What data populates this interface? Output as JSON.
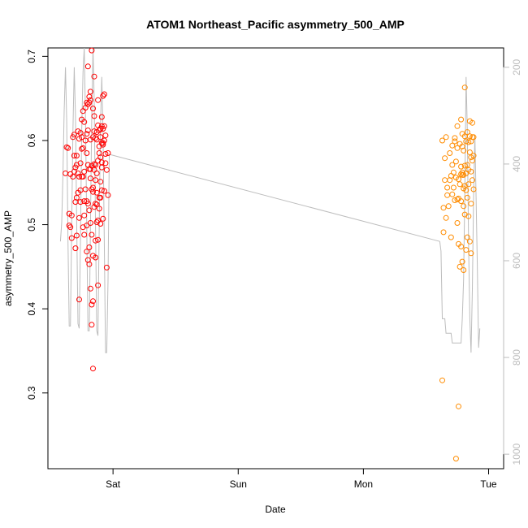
{
  "chart_data": {
    "type": "scatter",
    "title": "ATOM1 Northeast_Pacific asymmetry_500_AMP",
    "xlabel": "Date",
    "ylabel": "asymmetry_500_AMP",
    "x_axis": {
      "ticks": [
        {
          "label": "Sat",
          "t": 0.0
        },
        {
          "label": "Sun",
          "t": 1.0
        },
        {
          "label": "Mon",
          "t": 2.0
        },
        {
          "label": "Tue",
          "t": 3.0
        }
      ],
      "range_days": [
        -0.52,
        3.12
      ]
    },
    "y_axis": {
      "ylim": [
        0.21,
        0.71
      ],
      "ticks": [
        0.3,
        0.4,
        0.5,
        0.6,
        0.7
      ],
      "tick_labels": [
        "0.3",
        "0.4",
        "0.5",
        "0.6",
        "0.7"
      ]
    },
    "y2_axis": {
      "range": [
        1030,
        160
      ],
      "ticks": [
        200,
        400,
        600,
        800,
        1000
      ],
      "tick_labels": [
        "200",
        "400",
        "600",
        "800",
        "1000"
      ],
      "color": "#bdbdbd"
    },
    "series": [
      {
        "color": "#ff0000",
        "points": [
          [
            -0.38,
            0.561
          ],
          [
            -0.37,
            0.592
          ],
          [
            -0.36,
            0.591
          ],
          [
            -0.35,
            0.513
          ],
          [
            -0.35,
            0.499
          ],
          [
            -0.34,
            0.56
          ],
          [
            -0.34,
            0.497
          ],
          [
            -0.33,
            0.511
          ],
          [
            -0.33,
            0.484
          ],
          [
            -0.32,
            0.557
          ],
          [
            -0.32,
            0.604
          ],
          [
            -0.31,
            0.563
          ],
          [
            -0.31,
            0.607
          ],
          [
            -0.31,
            0.582
          ],
          [
            -0.3,
            0.568
          ],
          [
            -0.3,
            0.527
          ],
          [
            -0.3,
            0.472
          ],
          [
            -0.29,
            0.487
          ],
          [
            -0.29,
            0.571
          ],
          [
            -0.29,
            0.582
          ],
          [
            -0.28,
            0.561
          ],
          [
            -0.28,
            0.538
          ],
          [
            -0.28,
            0.611
          ],
          [
            -0.27,
            0.602
          ],
          [
            -0.27,
            0.557
          ],
          [
            -0.27,
            0.411
          ],
          [
            -0.26,
            0.573
          ],
          [
            -0.26,
            0.541
          ],
          [
            -0.26,
            0.527
          ],
          [
            -0.26,
            0.609
          ],
          [
            -0.25,
            0.625
          ],
          [
            -0.25,
            0.557
          ],
          [
            -0.25,
            0.604
          ],
          [
            -0.24,
            0.635
          ],
          [
            -0.24,
            0.591
          ],
          [
            -0.24,
            0.557
          ],
          [
            -0.23,
            0.622
          ],
          [
            -0.23,
            0.563
          ],
          [
            -0.23,
            0.511
          ],
          [
            -0.23,
            0.488
          ],
          [
            -0.22,
            0.639
          ],
          [
            -0.22,
            0.6
          ],
          [
            -0.22,
            0.542
          ],
          [
            -0.21,
            0.645
          ],
          [
            -0.21,
            0.608
          ],
          [
            -0.21,
            0.528
          ],
          [
            -0.21,
            0.499
          ],
          [
            -0.2,
            0.688
          ],
          [
            -0.2,
            0.612
          ],
          [
            -0.2,
            0.571
          ],
          [
            -0.2,
            0.525
          ],
          [
            -0.2,
            0.458
          ],
          [
            -0.19,
            0.645
          ],
          [
            -0.19,
            0.652
          ],
          [
            -0.19,
            0.566
          ],
          [
            -0.19,
            0.517
          ],
          [
            -0.19,
            0.453
          ],
          [
            -0.18,
            0.658
          ],
          [
            -0.18,
            0.648
          ],
          [
            -0.18,
            0.601
          ],
          [
            -0.18,
            0.555
          ],
          [
            -0.18,
            0.424
          ],
          [
            -0.17,
            0.707
          ],
          [
            -0.17,
            0.57
          ],
          [
            -0.17,
            0.542
          ],
          [
            -0.17,
            0.381
          ],
          [
            -0.17,
            0.405
          ],
          [
            -0.16,
            0.638
          ],
          [
            -0.16,
            0.604
          ],
          [
            -0.16,
            0.539
          ],
          [
            -0.16,
            0.329
          ],
          [
            -0.16,
            0.463
          ],
          [
            -0.16,
            0.409
          ],
          [
            -0.15,
            0.676
          ],
          [
            -0.15,
            0.629
          ],
          [
            -0.15,
            0.611
          ],
          [
            -0.15,
            0.565
          ],
          [
            -0.15,
            0.521
          ],
          [
            -0.14,
            0.603
          ],
          [
            -0.14,
            0.571
          ],
          [
            -0.14,
            0.553
          ],
          [
            -0.14,
            0.525
          ],
          [
            -0.14,
            0.481
          ],
          [
            -0.13,
            0.61
          ],
          [
            -0.13,
            0.601
          ],
          [
            -0.13,
            0.561
          ],
          [
            -0.13,
            0.524
          ],
          [
            -0.13,
            0.503
          ],
          [
            -0.12,
            0.648
          ],
          [
            -0.12,
            0.618
          ],
          [
            -0.12,
            0.576
          ],
          [
            -0.12,
            0.482
          ],
          [
            -0.12,
            0.428
          ],
          [
            -0.11,
            0.612
          ],
          [
            -0.11,
            0.593
          ],
          [
            -0.11,
            0.585
          ],
          [
            -0.11,
            0.532
          ],
          [
            -0.1,
            0.604
          ],
          [
            -0.1,
            0.614
          ],
          [
            -0.1,
            0.58
          ],
          [
            -0.1,
            0.551
          ],
          [
            -0.1,
            0.501
          ],
          [
            -0.09,
            0.628
          ],
          [
            -0.09,
            0.617
          ],
          [
            -0.09,
            0.597
          ],
          [
            -0.09,
            0.568
          ],
          [
            -0.09,
            0.541
          ],
          [
            -0.08,
            0.653
          ],
          [
            -0.08,
            0.614
          ],
          [
            -0.08,
            0.595
          ],
          [
            -0.08,
            0.507
          ],
          [
            -0.07,
            0.655
          ],
          [
            -0.07,
            0.617
          ],
          [
            -0.07,
            0.6
          ],
          [
            -0.07,
            0.54
          ],
          [
            -0.06,
            0.606
          ],
          [
            -0.06,
            0.573
          ],
          [
            -0.05,
            0.565
          ],
          [
            -0.05,
            0.449
          ],
          [
            -0.04,
            0.585
          ],
          [
            -0.04,
            0.535
          ],
          [
            -0.13,
            0.538
          ],
          [
            -0.18,
            0.502
          ],
          [
            -0.21,
            0.585
          ],
          [
            -0.23,
            0.528
          ],
          [
            -0.11,
            0.519
          ],
          [
            -0.15,
            0.572
          ],
          [
            -0.17,
            0.488
          ],
          [
            -0.09,
            0.574
          ],
          [
            -0.27,
            0.508
          ],
          [
            -0.24,
            0.497
          ],
          [
            -0.19,
            0.473
          ],
          [
            -0.14,
            0.461
          ],
          [
            -0.25,
            0.59
          ],
          [
            -0.08,
            0.597
          ],
          [
            -0.06,
            0.584
          ],
          [
            -0.29,
            0.532
          ],
          [
            -0.2,
            0.643
          ],
          [
            -0.16,
            0.544
          ],
          [
            -0.12,
            0.505
          ],
          [
            -0.1,
            0.532
          ],
          [
            -0.21,
            0.468
          ],
          [
            -0.18,
            0.566
          ]
        ]
      },
      {
        "color": "#ff8c00",
        "points": [
          [
            2.63,
            0.6
          ],
          [
            2.63,
            0.315
          ],
          [
            2.64,
            0.491
          ],
          [
            2.64,
            0.52
          ],
          [
            2.65,
            0.579
          ],
          [
            2.65,
            0.553
          ],
          [
            2.66,
            0.604
          ],
          [
            2.66,
            0.508
          ],
          [
            2.67,
            0.535
          ],
          [
            2.67,
            0.544
          ],
          [
            2.68,
            0.522
          ],
          [
            2.69,
            0.585
          ],
          [
            2.69,
            0.553
          ],
          [
            2.7,
            0.485
          ],
          [
            2.7,
            0.558
          ],
          [
            2.71,
            0.536
          ],
          [
            2.71,
            0.571
          ],
          [
            2.72,
            0.562
          ],
          [
            2.72,
            0.544
          ],
          [
            2.73,
            0.603
          ],
          [
            2.73,
            0.529
          ],
          [
            2.74,
            0.575
          ],
          [
            2.74,
            0.556
          ],
          [
            2.74,
            0.222
          ],
          [
            2.75,
            0.617
          ],
          [
            2.75,
            0.591
          ],
          [
            2.75,
            0.502
          ],
          [
            2.76,
            0.554
          ],
          [
            2.76,
            0.477
          ],
          [
            2.76,
            0.284
          ],
          [
            2.77,
            0.596
          ],
          [
            2.77,
            0.548
          ],
          [
            2.78,
            0.625
          ],
          [
            2.78,
            0.569
          ],
          [
            2.78,
            0.528
          ],
          [
            2.78,
            0.474
          ],
          [
            2.79,
            0.608
          ],
          [
            2.79,
            0.562
          ],
          [
            2.79,
            0.559
          ],
          [
            2.79,
            0.456
          ],
          [
            2.8,
            0.588
          ],
          [
            2.8,
            0.543
          ],
          [
            2.8,
            0.522
          ],
          [
            2.8,
            0.446
          ],
          [
            2.81,
            0.663
          ],
          [
            2.81,
            0.605
          ],
          [
            2.81,
            0.546
          ],
          [
            2.81,
            0.512
          ],
          [
            2.82,
            0.599
          ],
          [
            2.82,
            0.561
          ],
          [
            2.82,
            0.541
          ],
          [
            2.83,
            0.61
          ],
          [
            2.83,
            0.571
          ],
          [
            2.83,
            0.532
          ],
          [
            2.84,
            0.598
          ],
          [
            2.84,
            0.565
          ],
          [
            2.84,
            0.548
          ],
          [
            2.85,
            0.623
          ],
          [
            2.85,
            0.605
          ],
          [
            2.85,
            0.586
          ],
          [
            2.85,
            0.48
          ],
          [
            2.86,
            0.599
          ],
          [
            2.86,
            0.563
          ],
          [
            2.86,
            0.525
          ],
          [
            2.86,
            0.466
          ],
          [
            2.87,
            0.621
          ],
          [
            2.87,
            0.604
          ],
          [
            2.87,
            0.576
          ],
          [
            2.87,
            0.553
          ],
          [
            2.88,
            0.604
          ],
          [
            2.88,
            0.582
          ],
          [
            2.88,
            0.542
          ],
          [
            2.77,
            0.45
          ],
          [
            2.82,
            0.47
          ],
          [
            2.73,
            0.599
          ],
          [
            2.79,
            0.593
          ],
          [
            2.84,
            0.51
          ],
          [
            2.76,
            0.531
          ],
          [
            2.8,
            0.559
          ],
          [
            2.71,
            0.594
          ],
          [
            2.86,
            0.58
          ],
          [
            2.83,
            0.485
          ],
          [
            2.78,
            0.56
          ],
          [
            2.75,
            0.53
          ],
          [
            2.81,
            0.57
          ]
        ]
      }
    ],
    "secondary_line": {
      "color": "#bdbdbd",
      "segments": [
        [
          [
            -0.42,
            560
          ],
          [
            -0.41,
            520
          ],
          [
            -0.4,
            420
          ],
          [
            -0.39,
            290
          ],
          [
            -0.38,
            200
          ],
          [
            -0.37,
            310
          ],
          [
            -0.36,
            560
          ],
          [
            -0.35,
            735
          ],
          [
            -0.34,
            735
          ],
          [
            -0.33,
            520
          ],
          [
            -0.32,
            330
          ],
          [
            -0.31,
            200
          ],
          [
            -0.3,
            300
          ],
          [
            -0.29,
            520
          ],
          [
            -0.28,
            730
          ],
          [
            -0.27,
            740
          ],
          [
            -0.26,
            550
          ],
          [
            -0.25,
            330
          ],
          [
            -0.24,
            210
          ],
          [
            -0.23,
            160
          ],
          [
            -0.22,
            300
          ],
          [
            -0.21,
            530
          ],
          [
            -0.2,
            745
          ],
          [
            -0.19,
            745
          ],
          [
            -0.18,
            520
          ],
          [
            -0.17,
            310
          ],
          [
            -0.16,
            160
          ],
          [
            -0.15,
            270
          ],
          [
            -0.14,
            530
          ],
          [
            -0.13,
            745
          ],
          [
            -0.12,
            755
          ],
          [
            -0.11,
            520
          ],
          [
            -0.1,
            320
          ],
          [
            -0.09,
            220
          ],
          [
            -0.08,
            330
          ],
          [
            -0.07,
            560
          ],
          [
            -0.06,
            790
          ],
          [
            -0.05,
            790
          ],
          [
            -0.04,
            640
          ],
          [
            -0.03,
            380
          ]
        ],
        [
          [
            -0.03,
            380
          ],
          [
            2.61,
            560
          ]
        ],
        [
          [
            2.61,
            560
          ],
          [
            2.62,
            580
          ],
          [
            2.63,
            720
          ],
          [
            2.65,
            720
          ],
          [
            2.66,
            750
          ],
          [
            2.7,
            750
          ],
          [
            2.71,
            770
          ],
          [
            2.78,
            770
          ],
          [
            2.79,
            720
          ],
          [
            2.8,
            640
          ],
          [
            2.81,
            460
          ],
          [
            2.82,
            220
          ],
          [
            2.83,
            330
          ],
          [
            2.84,
            560
          ],
          [
            2.85,
            720
          ],
          [
            2.86,
            790
          ],
          [
            2.87,
            660
          ],
          [
            2.88,
            470
          ],
          [
            2.89,
            340
          ],
          [
            2.9,
            470
          ],
          [
            2.91,
            610
          ],
          [
            2.92,
            780
          ],
          [
            2.93,
            740
          ]
        ]
      ]
    }
  }
}
